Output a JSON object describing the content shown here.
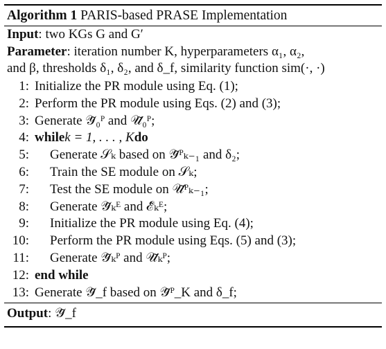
{
  "algorithm": {
    "label": "Algorithm 1",
    "title": "PARIS-based PRASE Implementation"
  },
  "input": {
    "label": "Input",
    "text": ": two KGs G and G′"
  },
  "parameter": {
    "label": "Parameter",
    "line1": ":  iteration number K, hyperparameters α₁, α₂,",
    "line2": "and β, thresholds δ₁, δ₂, and δ_f, similarity function sim(·, ·)"
  },
  "steps": [
    {
      "num": "1:",
      "text": "Initialize the PR module using Eq. (1);"
    },
    {
      "num": "2:",
      "text": "Perform the PR module using Eqs. (2) and (3);"
    },
    {
      "num": "3:",
      "text": "Generate 𝒴̃₀ᴾ and 𝒰̃₀ᴾ;"
    },
    {
      "num": "4:",
      "kw1": "while",
      "text": " k = 1, . . . , K ",
      "kw2": "do"
    },
    {
      "num": "5:",
      "text": "Generate 𝒮ₖ based on 𝒴̃ᴾₖ₋₁ and δ₂;"
    },
    {
      "num": "6:",
      "text": "Train the SE module on 𝒮ₖ;"
    },
    {
      "num": "7:",
      "text": "Test the SE module on 𝒰̃ᴾₖ₋₁;"
    },
    {
      "num": "8:",
      "text": "Generate 𝒴̃ₖᴱ and ℰ̃ₖᴱ;"
    },
    {
      "num": "9:",
      "text": "Initialize the PR module using Eq. (4);"
    },
    {
      "num": "10:",
      "text": "Perform the PR module using Eqs. (5) and (3);"
    },
    {
      "num": "11:",
      "text": "Generate 𝒴̃ₖᴾ and 𝒰̃ₖᴾ;"
    },
    {
      "num": "12:",
      "kw1": "end while",
      "text": ""
    },
    {
      "num": "13:",
      "text": "Generate 𝒴̃_f based on 𝒴̃ᴾ_K and δ_f;"
    }
  ],
  "output": {
    "label": "Output",
    "text": ": 𝒴̃_f"
  }
}
